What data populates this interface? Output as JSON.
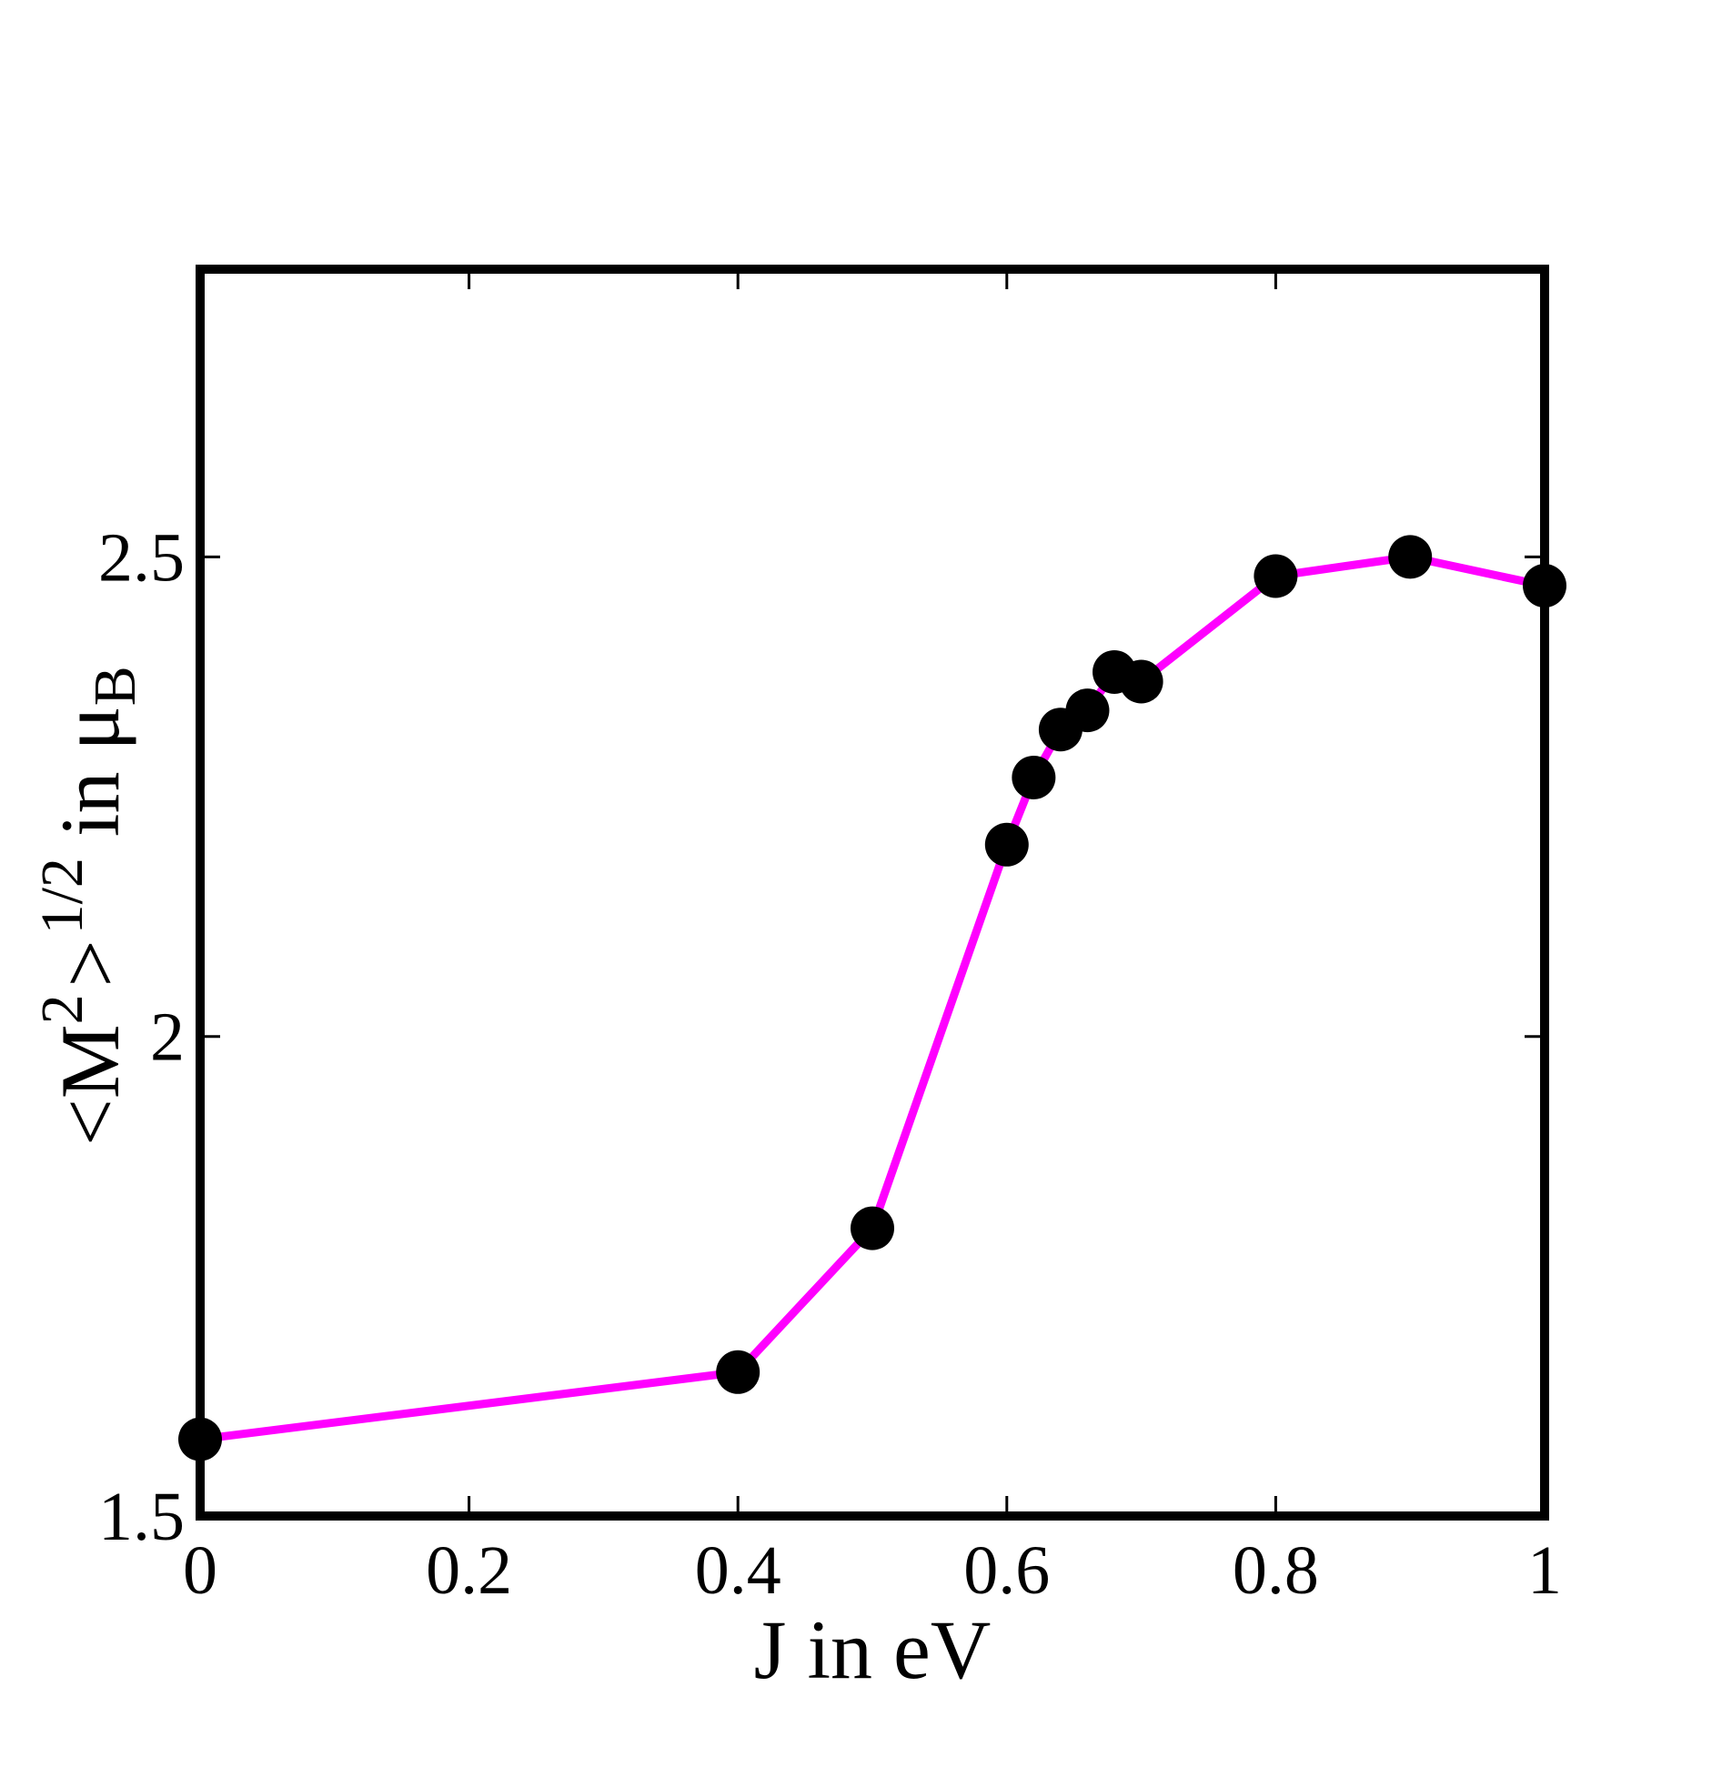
{
  "chart_data": {
    "type": "line",
    "xlabel": "J in eV",
    "ylabel": {
      "open": "<M",
      "sup1": "2",
      "close": ">",
      "sup2": "1/2",
      "in": " in μ",
      "sub": "B"
    },
    "xlim": [
      0,
      1
    ],
    "ylim": [
      1.5,
      2.8
    ],
    "x_ticks": [
      0,
      0.2,
      0.4,
      0.6,
      0.8,
      1
    ],
    "x_tick_labels": [
      "0",
      "0.2",
      "0.4",
      "0.6",
      "0.8",
      "1"
    ],
    "y_ticks": [
      1.5,
      2,
      2.5
    ],
    "y_tick_labels": [
      "1.5",
      "2",
      "2.5"
    ],
    "grid": false,
    "series": [
      {
        "color": "#ff00ff",
        "marker": "circle",
        "marker_color": "#000000",
        "x": [
          0,
          0.4,
          0.5,
          0.6,
          0.62,
          0.64,
          0.66,
          0.68,
          0.7,
          0.8,
          0.9,
          1.0
        ],
        "y": [
          1.58,
          1.65,
          1.8,
          2.2,
          2.27,
          2.32,
          2.34,
          2.38,
          2.37,
          2.48,
          2.5,
          2.47
        ]
      }
    ]
  }
}
